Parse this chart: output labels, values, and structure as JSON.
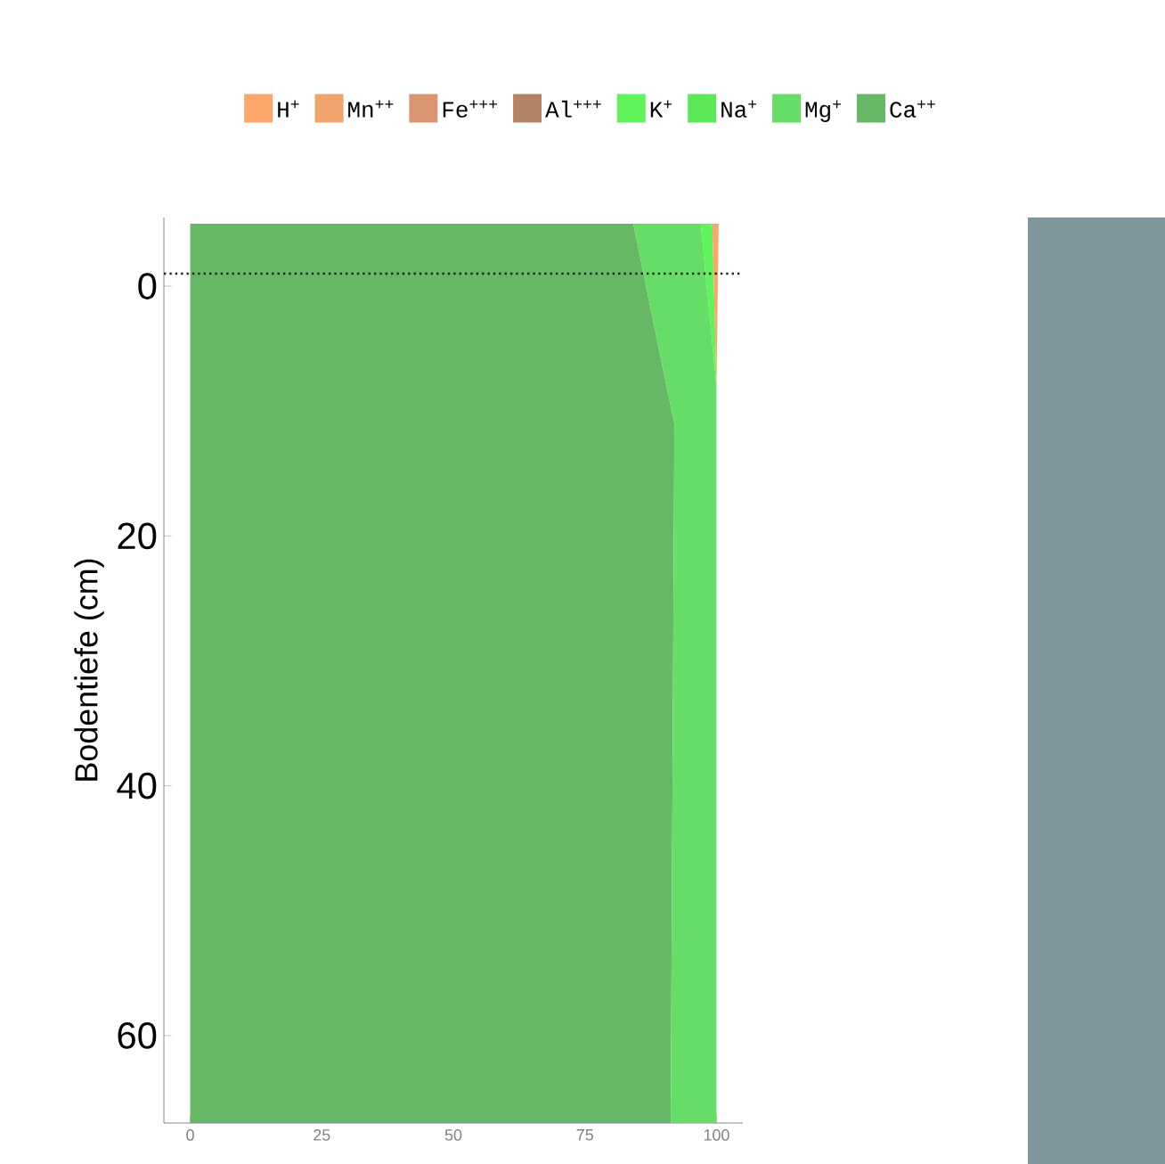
{
  "chart_data": {
    "type": "area",
    "stacked": true,
    "orientation": "horizontal",
    "ylabel": "Bodentiefe (cm)",
    "x": [
      -5,
      8,
      11,
      67
    ],
    "xlim": [
      -5,
      105
    ],
    "xticks": [
      0,
      25,
      50,
      75,
      100
    ],
    "ylim": [
      67,
      -5.5
    ],
    "yticks": [
      0,
      20,
      40,
      60
    ],
    "legend": "top",
    "ref_lines": [
      {
        "axis": "y",
        "value": -1,
        "line_style": "dotted",
        "color": "#222222"
      }
    ],
    "series": [
      {
        "name": "Ca$^{++}$",
        "color": "#66b866",
        "values": [
          84.2,
          90.5,
          92,
          91.3
        ]
      },
      {
        "name": "Mg$^{+}$",
        "color": "#66dd66",
        "values": [
          12.8,
          9.5,
          8,
          8.7
        ]
      },
      {
        "name": "Na$^{+}$",
        "color": "#5de85a",
        "values": [
          null,
          null,
          null,
          null
        ]
      },
      {
        "name": "K$^{+}$",
        "color": "#5ff55a",
        "values": [
          2.2,
          0,
          0,
          0
        ]
      },
      {
        "name": "Al$^{+++}$",
        "color": "#b38463",
        "values": [
          null,
          null,
          null,
          null
        ]
      },
      {
        "name": "Fe$^{+++}$",
        "color": "#d99670",
        "values": [
          null,
          null,
          null,
          null
        ]
      },
      {
        "name": "Mn$^{++}$",
        "color": "#f0a46c",
        "values": [
          null,
          null,
          null,
          null
        ]
      },
      {
        "name": "H$^{+}$",
        "color": "#fba66a",
        "values": [
          1.2,
          0,
          0,
          0
        ]
      }
    ]
  }
}
